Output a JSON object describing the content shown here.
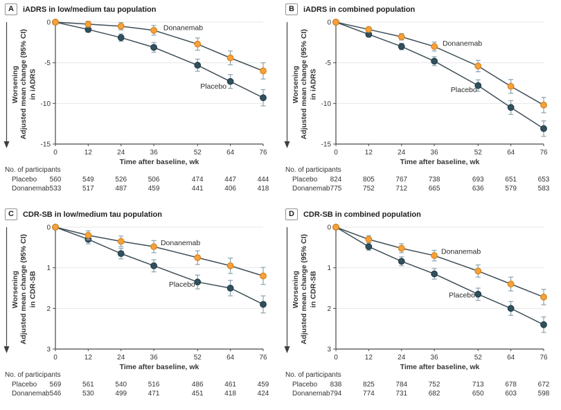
{
  "shared": {
    "worsening_label": "Worsening",
    "participants_header": "No. of participants",
    "x_label": "Time after baseline, wk",
    "x_ticks": [
      0,
      12,
      24,
      36,
      52,
      64,
      76
    ],
    "x_max": 76,
    "colors": {
      "donanemab_fill": "#F7A13B",
      "donanemab_stroke": "#D4821C",
      "placebo_fill": "#32505D",
      "placebo_stroke": "#203D48",
      "line": "#3E4E57",
      "error_bar": "#8AA2B0",
      "grid": "#E7E7E7",
      "axis": "#474747",
      "text": "#363636"
    }
  },
  "chart_data": [
    {
      "type": "line",
      "panel_label": "A",
      "title": "iADRS in low/medium tau population",
      "ylabel": "Adjusted mean change (95% CI)",
      "ylabel_line2": "in iADRS",
      "xlabel": "Time after baseline, wk",
      "x": [
        0,
        12,
        24,
        36,
        52,
        64,
        76
      ],
      "y_ticks": [
        0,
        -5,
        -10,
        -15
      ],
      "ylim_top": 0,
      "ylim_bottom": -15,
      "grid": true,
      "series": [
        {
          "name": "Placebo",
          "color_key": "placebo",
          "values": [
            0,
            -0.9,
            -1.9,
            -3.1,
            -5.3,
            -7.3,
            -9.3
          ],
          "ci": [
            0,
            0.35,
            0.45,
            0.6,
            0.75,
            0.85,
            1.0
          ],
          "label_wk": 53,
          "label_val": -8.2,
          "participants": [
            560,
            549,
            526,
            506,
            474,
            447,
            444
          ]
        },
        {
          "name": "Donanemab",
          "color_key": "donanemab",
          "values": [
            0,
            -0.25,
            -0.5,
            -1.0,
            -2.7,
            -4.4,
            -6.0
          ],
          "ci": [
            0,
            0.35,
            0.45,
            0.6,
            0.75,
            0.85,
            1.0
          ],
          "label_wk": 39.5,
          "label_val": -1.0,
          "participants": [
            533,
            517,
            487,
            459,
            441,
            406,
            418
          ]
        }
      ]
    },
    {
      "type": "line",
      "panel_label": "B",
      "title": "iADRS in combined population",
      "ylabel": "Adjusted mean change (95% CI)",
      "ylabel_line2": "in iADRS",
      "xlabel": "Time after baseline, wk",
      "x": [
        0,
        12,
        24,
        36,
        52,
        64,
        76
      ],
      "y_ticks": [
        0,
        -5,
        -10,
        -15
      ],
      "ylim_top": 0,
      "ylim_bottom": -15,
      "grid": true,
      "series": [
        {
          "name": "Placebo",
          "color_key": "placebo",
          "values": [
            0,
            -1.5,
            -3.0,
            -4.8,
            -7.8,
            -10.5,
            -13.1
          ],
          "ci": [
            0,
            0.3,
            0.4,
            0.55,
            0.7,
            0.85,
            0.95
          ],
          "label_wk": 42,
          "label_val": -8.6,
          "participants": [
            824,
            805,
            767,
            738,
            693,
            651,
            653
          ]
        },
        {
          "name": "Donanemab",
          "color_key": "donanemab",
          "values": [
            0,
            -0.9,
            -1.8,
            -3.0,
            -5.4,
            -7.9,
            -10.2
          ],
          "ci": [
            0,
            0.3,
            0.4,
            0.55,
            0.7,
            0.85,
            0.95
          ],
          "label_wk": 39,
          "label_val": -2.9,
          "participants": [
            775,
            752,
            712,
            665,
            636,
            579,
            583
          ]
        }
      ]
    },
    {
      "type": "line",
      "panel_label": "C",
      "title": "CDR-SB in low/medium tau population",
      "ylabel": "Adjusted mean change (95% CI)",
      "ylabel_line2": "in CDR-SB",
      "xlabel": "Time after baseline, wk",
      "x": [
        0,
        12,
        24,
        36,
        52,
        64,
        76
      ],
      "y_ticks": [
        0,
        1,
        2,
        3
      ],
      "ylim_top": 0,
      "ylim_bottom": 3,
      "grid": true,
      "series": [
        {
          "name": "Placebo",
          "color_key": "placebo",
          "values": [
            0,
            0.3,
            0.65,
            0.95,
            1.35,
            1.5,
            1.9
          ],
          "ci": [
            0,
            0.11,
            0.13,
            0.15,
            0.17,
            0.19,
            0.21
          ],
          "label_wk": 41.5,
          "label_val": 1.47,
          "participants": [
            569,
            561,
            540,
            516,
            486,
            461,
            459
          ]
        },
        {
          "name": "Donanemab",
          "color_key": "donanemab",
          "values": [
            0,
            0.2,
            0.35,
            0.48,
            0.75,
            0.95,
            1.2
          ],
          "ci": [
            0,
            0.11,
            0.13,
            0.15,
            0.17,
            0.19,
            0.21
          ],
          "label_wk": 38.5,
          "label_val": 0.44,
          "participants": [
            546,
            530,
            499,
            471,
            451,
            418,
            424
          ]
        }
      ]
    },
    {
      "type": "line",
      "panel_label": "D",
      "title": "CDR-SB in combined population",
      "ylabel": "Adjusted mean change (95% CI)",
      "ylabel_line2": "in CDR-SB",
      "xlabel": "Time after baseline, wk",
      "x": [
        0,
        12,
        24,
        36,
        52,
        64,
        76
      ],
      "y_ticks": [
        0,
        1,
        2,
        3
      ],
      "ylim_top": 0,
      "ylim_bottom": 3,
      "grid": true,
      "series": [
        {
          "name": "Placebo",
          "color_key": "placebo",
          "values": [
            0,
            0.48,
            0.84,
            1.15,
            1.65,
            2.0,
            2.4
          ],
          "ci": [
            0,
            0.09,
            0.11,
            0.13,
            0.15,
            0.17,
            0.19
          ],
          "label_wk": 41.3,
          "label_val": 1.73,
          "participants": [
            838,
            825,
            784,
            752,
            713,
            678,
            672
          ]
        },
        {
          "name": "Donanemab",
          "color_key": "donanemab",
          "values": [
            0,
            0.3,
            0.52,
            0.7,
            1.08,
            1.4,
            1.72
          ],
          "ci": [
            0,
            0.09,
            0.11,
            0.13,
            0.15,
            0.17,
            0.19
          ],
          "label_wk": 38.5,
          "label_val": 0.66,
          "participants": [
            794,
            774,
            731,
            682,
            650,
            603,
            598
          ]
        }
      ]
    }
  ]
}
